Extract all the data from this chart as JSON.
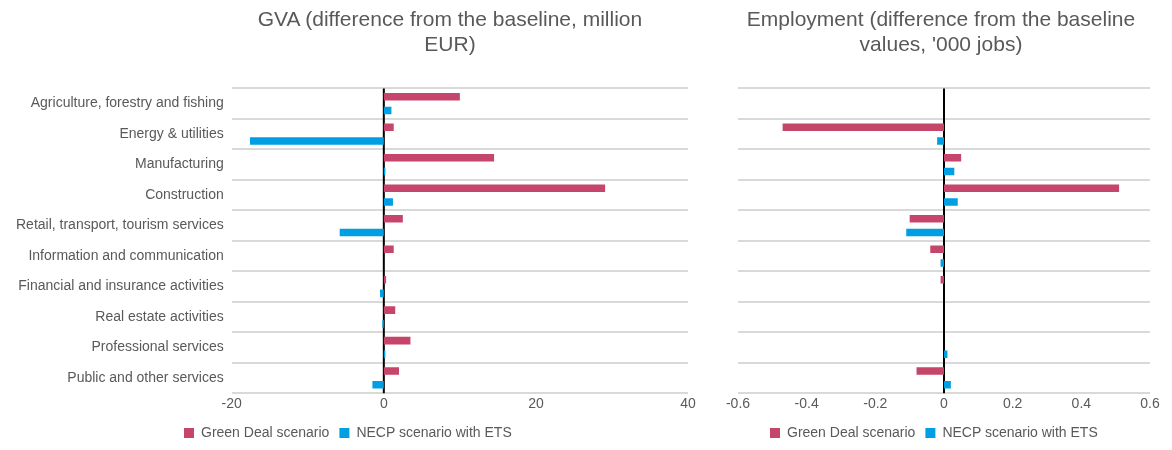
{
  "chart_data": [
    {
      "type": "bar",
      "orientation": "horizontal",
      "title": "GVA (difference from the baseline, million EUR)",
      "categories": [
        "Agriculture, forestry and fishing",
        "Energy & utilities",
        "Manufacturing",
        "Construction",
        "Retail, transport, tourism services",
        "Information and communication",
        "Financial and insurance activities",
        "Real estate activities",
        "Professional services",
        "Public and other services"
      ],
      "series": [
        {
          "name": "Green Deal scenario",
          "color": "#c6456b",
          "values": [
            10,
            1.3,
            14.5,
            29.1,
            2.5,
            1.3,
            0.3,
            1.5,
            3.5,
            2
          ]
        },
        {
          "name": "NECP scenario with ETS",
          "color": "#009fe3",
          "values": [
            1,
            -17.6,
            0.2,
            1.2,
            -5.8,
            0,
            -0.5,
            -0.2,
            0.2,
            -1.5
          ]
        }
      ],
      "xlim": [
        -20,
        40
      ],
      "xticks": [
        -20,
        0,
        20,
        40
      ],
      "grid": "y",
      "legend": "bottom"
    },
    {
      "type": "bar",
      "orientation": "horizontal",
      "title": "Employment (difference from the baseline values, '000 jobs)",
      "categories": [
        null,
        null,
        null,
        null,
        null,
        null,
        null,
        null,
        null,
        null
      ],
      "series": [
        {
          "name": "Green Deal scenario",
          "color": "#c6456b",
          "values": [
            0,
            -0.47,
            0.05,
            0.51,
            -0.1,
            -0.04,
            -0.01,
            0,
            0,
            -0.08
          ]
        },
        {
          "name": "NECP scenario with ETS",
          "color": "#009fe3",
          "values": [
            0,
            -0.02,
            0.03,
            0.04,
            -0.11,
            -0.01,
            0,
            0,
            0.01,
            0.02
          ]
        }
      ],
      "xlim": [
        -0.6,
        0.6
      ],
      "xticks": [
        -0.6,
        -0.4,
        -0.2,
        0,
        0.2,
        0.4,
        0.6
      ],
      "grid": "y",
      "legend": "bottom",
      "tick_labels": "x"
    }
  ]
}
